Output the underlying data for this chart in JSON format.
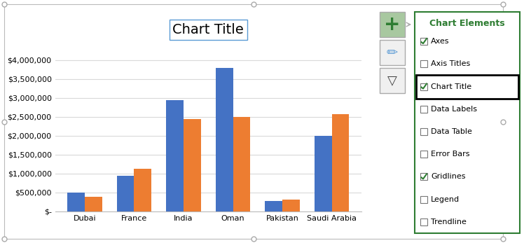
{
  "title": "Chart Title",
  "categories": [
    "Dubai",
    "France",
    "India",
    "Oman",
    "Pakistan",
    "Saudi Arabia"
  ],
  "series1": [
    500000,
    950000,
    2950000,
    3800000,
    280000,
    2000000
  ],
  "series2": [
    380000,
    1120000,
    2450000,
    2500000,
    320000,
    2580000
  ],
  "color1": "#4472C4",
  "color2": "#ED7D31",
  "ylim": [
    0,
    4500000
  ],
  "yticks": [
    0,
    500000,
    1000000,
    1500000,
    2000000,
    2500000,
    3000000,
    3500000,
    4000000
  ],
  "background_color": "#FFFFFF",
  "plot_bg": "#FFFFFF",
  "grid_color": "#D9D9D9",
  "chart_elements_title": "Chart Elements",
  "chart_items": [
    "Axes",
    "Axis Titles",
    "Chart Title",
    "Data Labels",
    "Data Table",
    "Error Bars",
    "Gridlines",
    "Legend",
    "Trendline"
  ],
  "chart_checked": [
    true,
    false,
    true,
    false,
    false,
    false,
    true,
    false,
    false
  ],
  "panel_bg": "#FFFFFF",
  "panel_border": "#2E7D32",
  "panel_header_color": "#2E7D32",
  "title_box_edge": "#5B9BD5",
  "icon_bg": "#C8C8C8",
  "icon_border": "#AAAAAA",
  "handle_color": "#AAAAAA",
  "outer_border_color": "#BBBBBB"
}
